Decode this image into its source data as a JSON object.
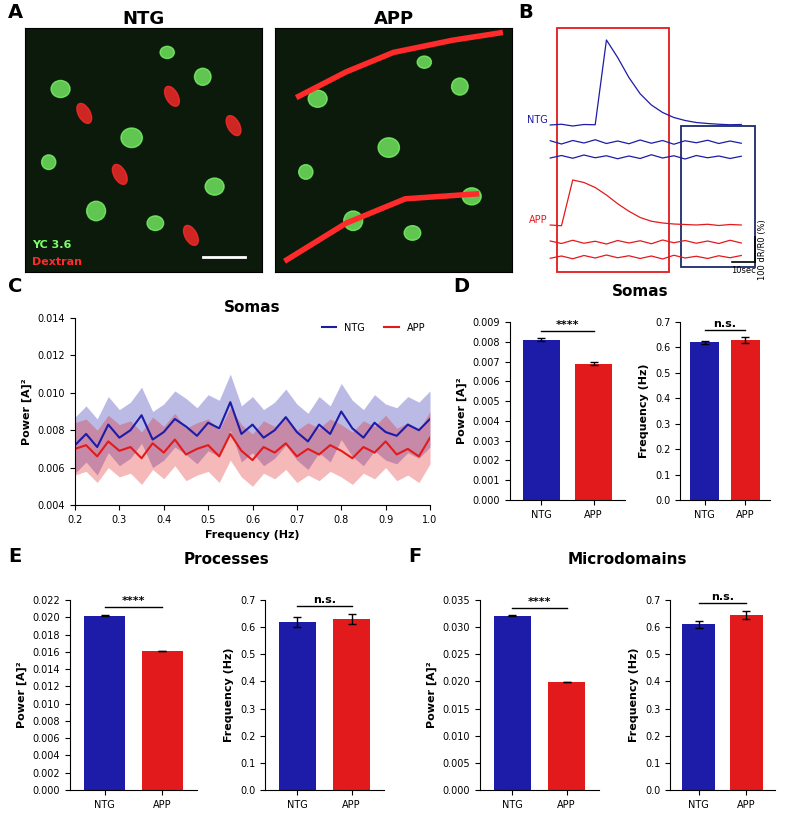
{
  "chart_data": [
    {
      "panel": "A",
      "type": "image",
      "titles": [
        "NTG",
        "APP"
      ],
      "channels": [
        {
          "name": "YC 3.6",
          "color": "#7dff6a"
        },
        {
          "name": "Dextran",
          "color": "#ff2a2a"
        }
      ]
    },
    {
      "panel": "B",
      "type": "trace",
      "x": [
        0,
        5,
        10,
        15,
        20,
        25,
        30,
        35,
        40,
        45,
        50,
        55,
        60,
        65,
        70,
        75,
        80,
        85
      ],
      "series": [
        {
          "name": "NTG",
          "color": "#1c1ca8",
          "values": [
            [
              0,
              3,
              -4,
              2,
              1,
              340,
              270,
              190,
              125,
              80,
              50,
              30,
              18,
              10,
              6,
              3,
              1,
              2
            ],
            [
              5,
              -8,
              6,
              -4,
              9,
              -6,
              4,
              -7,
              8,
              -5,
              6,
              -9,
              5,
              -3,
              7,
              -6,
              4,
              -5
            ],
            [
              -4,
              6,
              -5,
              8,
              -3,
              5,
              -7,
              4,
              -6,
              9,
              -4,
              5,
              -8,
              6,
              -3,
              4,
              -6,
              3
            ]
          ]
        },
        {
          "name": "APP",
          "color": "#e31a1c",
          "values": [
            [
              0,
              -3,
              180,
              170,
              150,
              120,
              85,
              55,
              30,
              15,
              8,
              4,
              2,
              0,
              3,
              -2,
              2,
              0
            ],
            [
              4,
              -6,
              7,
              -5,
              3,
              -8,
              6,
              -4,
              5,
              -7,
              8,
              -3,
              6,
              -5,
              4,
              -6,
              7,
              -4
            ],
            [
              -5,
              4,
              -7,
              6,
              -4,
              8,
              -3,
              5,
              -6,
              4,
              -8,
              7,
              -4,
              3,
              -6,
              5,
              -3,
              6
            ]
          ]
        }
      ],
      "windows": [
        {
          "range": [
            3,
            53
          ],
          "color": "#e31a1c"
        },
        {
          "range": [
            58,
            91
          ],
          "color": "#1c2a6e"
        }
      ],
      "scale_bar": {
        "x": 10,
        "x_label": "10sec",
        "y": 100,
        "y_label": "100 dR/R0 (%)"
      }
    },
    {
      "panel": "C",
      "type": "line",
      "title": "Somas",
      "x_label": "Frequency (Hz)",
      "y_label": "Power [A]²",
      "x": [
        0.2,
        0.225,
        0.25,
        0.275,
        0.3,
        0.325,
        0.35,
        0.375,
        0.4,
        0.425,
        0.45,
        0.475,
        0.5,
        0.525,
        0.55,
        0.575,
        0.6,
        0.625,
        0.65,
        0.675,
        0.7,
        0.725,
        0.75,
        0.775,
        0.8,
        0.825,
        0.85,
        0.875,
        0.9,
        0.925,
        0.95,
        0.975,
        1.0
      ],
      "series": [
        {
          "name": "NTG",
          "color": "#1c1ca8",
          "error": 0.0015,
          "values": [
            0.0072,
            0.0078,
            0.0071,
            0.0083,
            0.0076,
            0.008,
            0.0088,
            0.0075,
            0.0079,
            0.0086,
            0.0082,
            0.0077,
            0.0084,
            0.0081,
            0.0095,
            0.0078,
            0.0083,
            0.0076,
            0.008,
            0.0087,
            0.0079,
            0.0074,
            0.0083,
            0.0078,
            0.009,
            0.0081,
            0.0076,
            0.0084,
            0.0079,
            0.0077,
            0.0083,
            0.008,
            0.0086
          ]
        },
        {
          "name": "APP",
          "color": "#e31a1c",
          "error": 0.0014,
          "values": [
            0.007,
            0.0072,
            0.0066,
            0.0074,
            0.0069,
            0.0071,
            0.0065,
            0.0073,
            0.0068,
            0.0075,
            0.0067,
            0.007,
            0.0072,
            0.0066,
            0.0078,
            0.0069,
            0.0064,
            0.0071,
            0.0068,
            0.0073,
            0.0066,
            0.007,
            0.0067,
            0.0072,
            0.0069,
            0.0065,
            0.0071,
            0.0068,
            0.0074,
            0.0067,
            0.007,
            0.0066,
            0.0076
          ]
        }
      ],
      "xlim": [
        0.2,
        1.0
      ],
      "xticks": [
        0.2,
        0.3,
        0.4,
        0.5,
        0.6,
        0.7,
        0.8,
        0.9,
        1.0
      ],
      "ylim": [
        0.004,
        0.014
      ],
      "yticks": [
        0.004,
        0.006,
        0.008,
        {
          "value": 0.01,
          "label": "0.010"
        },
        0.012,
        0.014
      ],
      "legend": "upper right"
    },
    {
      "panel": "D",
      "type": "bar",
      "title": "Somas",
      "charts": [
        {
          "y_label": "Power [A]²",
          "categories": [
            "NTG",
            "APP"
          ],
          "values": [
            0.0081,
            0.0069
          ],
          "errors": [
            8e-05,
            6e-05
          ],
          "colors": [
            "#1c1ca8",
            "#e31a1c"
          ],
          "significance": "****",
          "ylim": [
            0,
            0.009
          ],
          "yticks": [
            {
              "value": 0,
              "label": "0.000"
            },
            0.001,
            0.002,
            0.003,
            0.004,
            0.005,
            0.006,
            0.007,
            0.008,
            0.009
          ]
        },
        {
          "y_label": "Frequency (Hz)",
          "categories": [
            "NTG",
            "APP"
          ],
          "values": [
            0.62,
            0.63
          ],
          "errors": [
            0.006,
            0.012
          ],
          "colors": [
            "#1c1ca8",
            "#e31a1c"
          ],
          "significance": "n.s.",
          "ylim": [
            0,
            0.7
          ],
          "yticks": [
            0.0,
            0.1,
            0.2,
            0.3,
            0.4,
            0.5,
            0.6,
            0.7
          ]
        }
      ]
    },
    {
      "panel": "E",
      "type": "bar",
      "title": "Processes",
      "charts": [
        {
          "y_label": "Power [A]²",
          "categories": [
            "NTG",
            "APP"
          ],
          "values": [
            0.0202,
            0.0161
          ],
          "errors": [
            6e-05,
            5e-05
          ],
          "colors": [
            "#1c1ca8",
            "#e31a1c"
          ],
          "significance": "****",
          "ylim": [
            0,
            0.022
          ],
          "yticks": [
            {
              "value": 0,
              "label": "0.000"
            },
            0.002,
            0.004,
            0.006,
            0.008,
            {
              "value": 0.01,
              "label": "0.010"
            },
            0.012,
            0.014,
            0.016,
            0.018,
            {
              "value": 0.02,
              "label": "0.020"
            },
            0.022
          ]
        },
        {
          "y_label": "Frequency (Hz)",
          "categories": [
            "NTG",
            "APP"
          ],
          "values": [
            0.62,
            0.63
          ],
          "errors": [
            0.018,
            0.02
          ],
          "colors": [
            "#1c1ca8",
            "#e31a1c"
          ],
          "significance": "n.s.",
          "ylim": [
            0,
            0.7
          ],
          "yticks": [
            0.0,
            0.1,
            0.2,
            0.3,
            0.4,
            0.5,
            0.6,
            0.7
          ]
        }
      ]
    },
    {
      "panel": "F",
      "type": "bar",
      "title": "Microdomains",
      "charts": [
        {
          "y_label": "Power [A]²",
          "categories": [
            "NTG",
            "APP"
          ],
          "values": [
            0.0321,
            0.0199
          ],
          "errors": [
            0.0001,
            8e-05
          ],
          "colors": [
            "#1c1ca8",
            "#e31a1c"
          ],
          "significance": "****",
          "ylim": [
            0,
            0.035
          ],
          "yticks": [
            {
              "value": 0,
              "label": "0.000"
            },
            0.005,
            {
              "value": 0.01,
              "label": "0.010"
            },
            0.015,
            {
              "value": 0.02,
              "label": "0.020"
            },
            0.025,
            {
              "value": 0.03,
              "label": "0.030"
            },
            0.035
          ]
        },
        {
          "y_label": "Frequency (Hz)",
          "categories": [
            "NTG",
            "APP"
          ],
          "values": [
            0.61,
            0.645
          ],
          "errors": [
            0.012,
            0.015
          ],
          "colors": [
            "#1c1ca8",
            "#e31a1c"
          ],
          "significance": "n.s.",
          "ylim": [
            0,
            0.7
          ],
          "yticks": [
            0.0,
            0.1,
            0.2,
            0.3,
            0.4,
            0.5,
            0.6,
            0.7
          ]
        }
      ]
    }
  ]
}
